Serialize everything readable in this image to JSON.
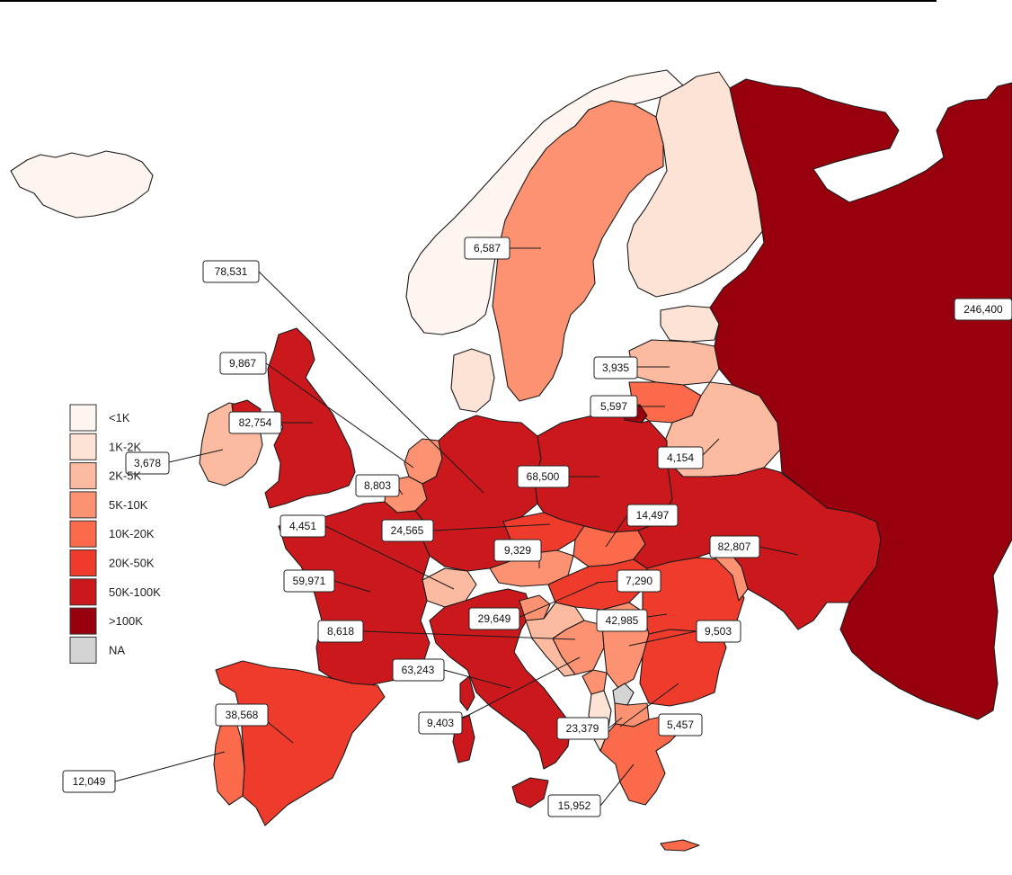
{
  "legend": {
    "items": [
      {
        "label": "<1K",
        "color": "#fff5f0"
      },
      {
        "label": "1K-2K",
        "color": "#fde2d6"
      },
      {
        "label": "2K-5K",
        "color": "#fcbba1"
      },
      {
        "label": "5K-10K",
        "color": "#fc9272"
      },
      {
        "label": "10K-20K",
        "color": "#fb6a4a"
      },
      {
        "label": "20K-50K",
        "color": "#ef3b2c"
      },
      {
        "label": "50K-100K",
        "color": "#cb181d"
      },
      {
        "label": ">100K",
        "color": "#99000d"
      },
      {
        "label": "NA",
        "color": "#d4d4d4"
      }
    ]
  },
  "callouts": [
    {
      "id": "germany",
      "value": "78,531"
    },
    {
      "id": "sweden",
      "value": "6,587"
    },
    {
      "id": "russia",
      "value": "246,400"
    },
    {
      "id": "netherlands",
      "value": "9,867"
    },
    {
      "id": "latvia",
      "value": "3,935"
    },
    {
      "id": "lithuania",
      "value": "5,597"
    },
    {
      "id": "uk",
      "value": "82,754"
    },
    {
      "id": "ireland",
      "value": "3,678"
    },
    {
      "id": "belarus",
      "value": "4,154"
    },
    {
      "id": "belgium",
      "value": "8,803"
    },
    {
      "id": "poland",
      "value": "68,500"
    },
    {
      "id": "switzerland",
      "value": "4,451"
    },
    {
      "id": "czechia",
      "value": "24,565"
    },
    {
      "id": "slovakia",
      "value": "14,497"
    },
    {
      "id": "austria",
      "value": "9,329"
    },
    {
      "id": "ukraine",
      "value": "82,807"
    },
    {
      "id": "france",
      "value": "59,971"
    },
    {
      "id": "hungary",
      "value": "7,290"
    },
    {
      "id": "croatia",
      "value": "29,649"
    },
    {
      "id": "romania",
      "value": "42,985"
    },
    {
      "id": "slovenia",
      "value": "8,618"
    },
    {
      "id": "serbia",
      "value": "9,503"
    },
    {
      "id": "italy",
      "value": "63,243"
    },
    {
      "id": "spain",
      "value": "38,568"
    },
    {
      "id": "bosnia",
      "value": "9,403"
    },
    {
      "id": "north-macedonia",
      "value": "23,379"
    },
    {
      "id": "bulgaria",
      "value": "5,457"
    },
    {
      "id": "portugal",
      "value": "12,049"
    },
    {
      "id": "greece",
      "value": "15,952"
    }
  ]
}
